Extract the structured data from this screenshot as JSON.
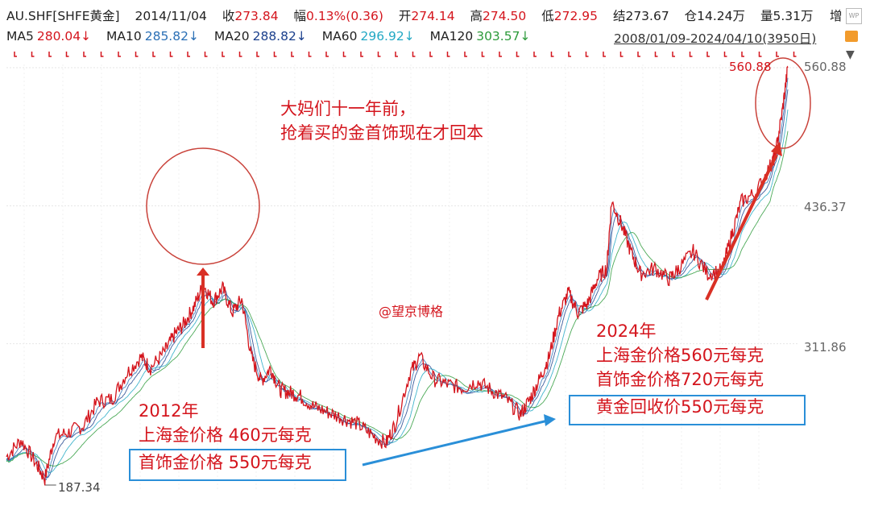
{
  "quote": {
    "symbol": "AU.SHF[SHFE黄金]",
    "date": "2014/11/04",
    "close_label": "收",
    "close": "273.84",
    "change_label": "幅",
    "change": "0.13%(0.36)",
    "open_label": "开",
    "open": "274.14",
    "high_label": "高",
    "high": "274.50",
    "low_label": "低",
    "low": "272.95",
    "settle_label": "结",
    "settle": "273.67",
    "oi_label": "仓",
    "oi": "14.24万",
    "vol_label": "量",
    "vol": "5.31万",
    "more_label": "增"
  },
  "ma": [
    {
      "name": "MA5",
      "value": "280.04↓",
      "color": "#d4151d"
    },
    {
      "name": "MA10",
      "value": "285.82↓",
      "color": "#2a6fb5"
    },
    {
      "name": "MA20",
      "value": "288.82↓",
      "color": "#1a3f8c"
    },
    {
      "name": "MA60",
      "value": "296.92↓",
      "color": "#22a8c4"
    },
    {
      "name": "MA120",
      "value": "303.57↓",
      "color": "#2c9a3a"
    }
  ],
  "range": "2008/01/09-2024/04/10(3950日)",
  "annotations": {
    "top_line1": "大妈们十一年前，",
    "top_line2": "抢着买的金首饰现在才回本",
    "watermark": "@望京博格",
    "y2024_title": "2024年",
    "y2024_line1": "上海金价格560元每克",
    "y2024_line2": "首饰金价格720元每克",
    "y2024_line3": "黄金回收价550元每克",
    "y2012_title": "2012年",
    "y2012_line1": "上海金价格 460元每克",
    "y2012_line2": "首饰金价格 550元每克"
  },
  "chart_data": {
    "type": "line",
    "title": "",
    "x_range": [
      "2008/01/09",
      "2024/04/10"
    ],
    "y_ticks": [
      560.88,
      436.37,
      311.86
    ],
    "high_label": "560.88",
    "low_label": "187.34",
    "series": [
      {
        "color": "#d4151d",
        "x": [
          2008.0,
          2008.3,
          2008.6,
          2008.8,
          2009.0,
          2009.3,
          2009.6,
          2009.9,
          2010.2,
          2010.5,
          2010.8,
          2011.0,
          2011.3,
          2011.5,
          2011.7,
          2011.9,
          2012.1,
          2012.3,
          2012.5,
          2012.7,
          2012.9,
          2013.1,
          2013.3,
          2013.5,
          2013.7,
          2013.9,
          2014.1,
          2014.4,
          2014.7,
          2015.0,
          2015.3,
          2015.6,
          2015.9,
          2016.1,
          2016.4,
          2016.6,
          2016.9,
          2017.2,
          2017.5,
          2017.8,
          2018.1,
          2018.4,
          2018.7,
          2018.9,
          2019.1,
          2019.3,
          2019.5,
          2019.7,
          2019.9,
          2020.1,
          2020.3,
          2020.5,
          2020.6,
          2020.8,
          2021.0,
          2021.2,
          2021.5,
          2021.8,
          2022.0,
          2022.3,
          2022.6,
          2022.9,
          2023.1,
          2023.3,
          2023.6,
          2023.9,
          2024.0,
          2024.15,
          2024.27
        ],
        "y": [
          210,
          225,
          205,
          190,
          228,
          232,
          238,
          260,
          262,
          285,
          300,
          290,
          305,
          320,
          330,
          345,
          365,
          350,
          362,
          340,
          352,
          300,
          278,
          290,
          270,
          268,
          265,
          255,
          250,
          245,
          240,
          230,
          222,
          240,
          285,
          300,
          280,
          275,
          272,
          278,
          270,
          262,
          248,
          262,
          280,
          300,
          338,
          358,
          340,
          348,
          370,
          380,
          440,
          420,
          395,
          375,
          380,
          370,
          380,
          395,
          375,
          378,
          410,
          440,
          448,
          472,
          480,
          520,
          560.88
        ]
      }
    ]
  }
}
